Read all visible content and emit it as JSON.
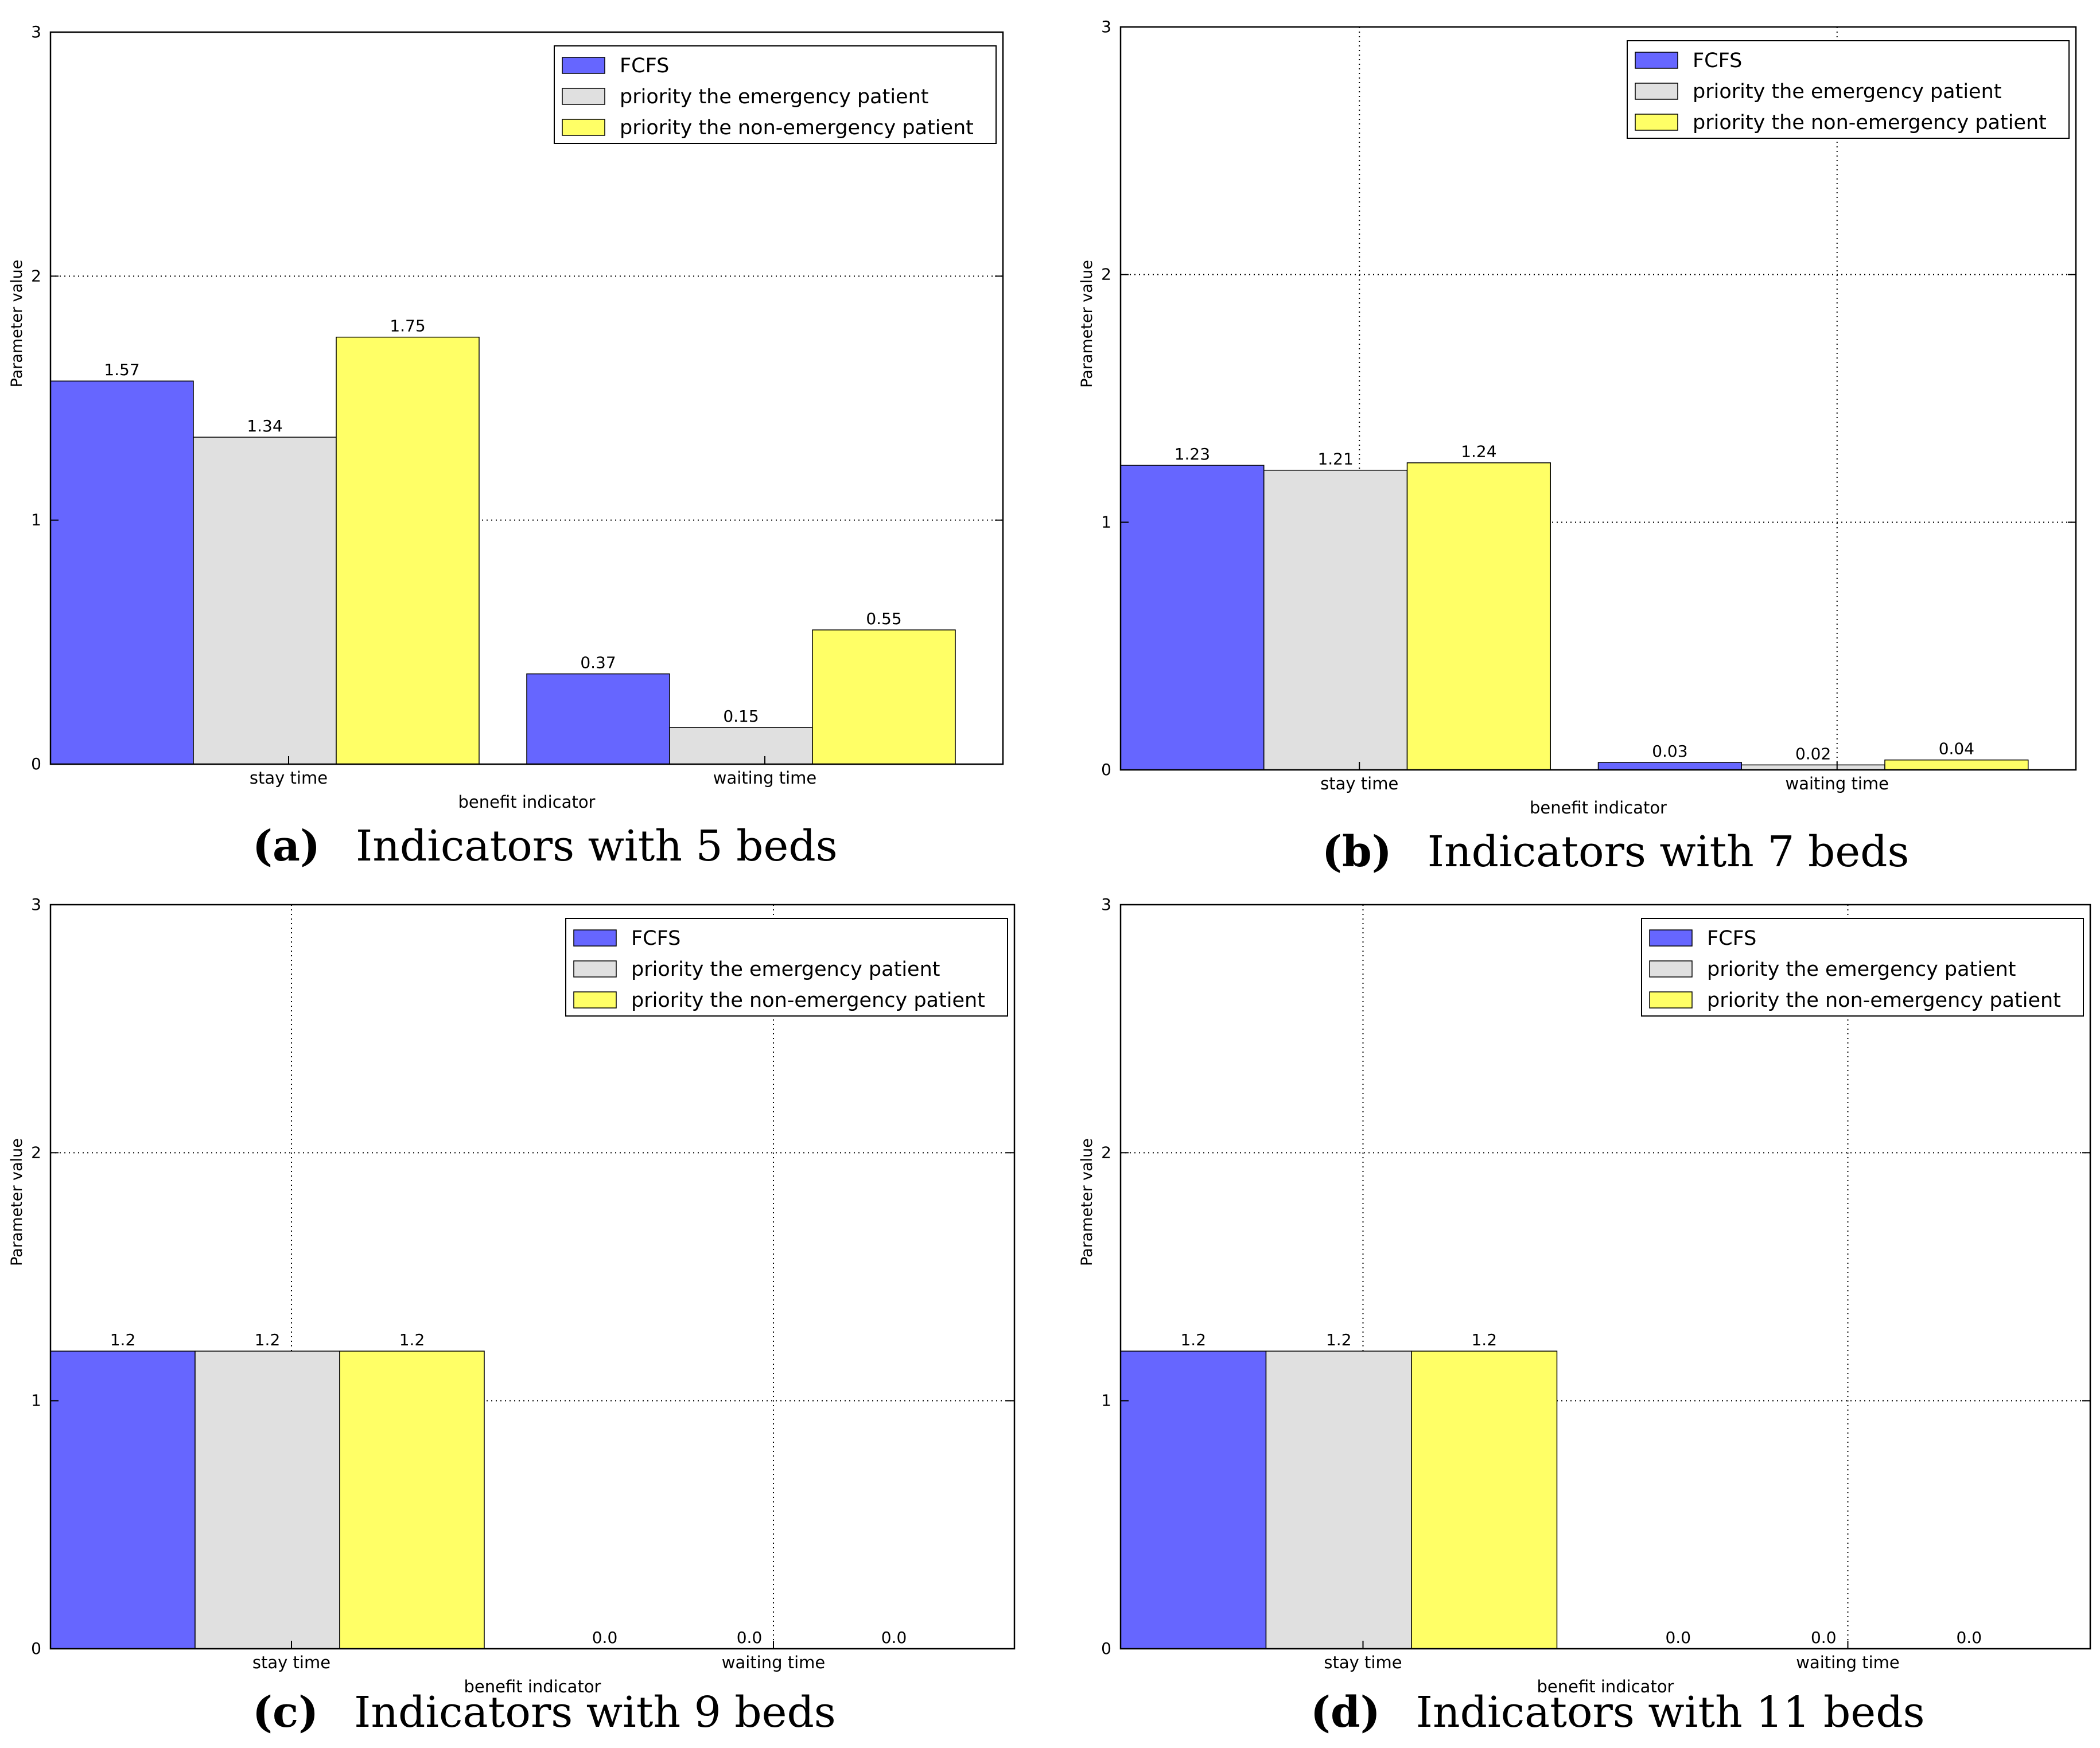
{
  "figure": {
    "legend_labels": [
      "FCFS",
      "priority the emergency patient",
      "priority the non-emergency patient"
    ],
    "colors": {
      "FCFS": "#6666ff",
      "emergency": "#e0e0e0",
      "non_emergency": "#ffff66",
      "grid": "#000000"
    }
  },
  "chart_data": [
    {
      "id": "a",
      "type": "bar",
      "caption_tag": "(a)",
      "caption_text": "Indicators with 5 beds",
      "categories": [
        "stay time",
        "waiting time"
      ],
      "series": [
        {
          "name": "FCFS",
          "values": [
            1.57,
            0.37
          ],
          "labels": [
            "1.57",
            "0.37"
          ]
        },
        {
          "name": "priority the emergency patient",
          "values": [
            1.34,
            0.15
          ],
          "labels": [
            "1.34",
            "0.15"
          ]
        },
        {
          "name": "priority the non-emergency patient",
          "values": [
            1.75,
            0.55
          ],
          "labels": [
            "1.75",
            "0.55"
          ]
        }
      ],
      "xlabel": "benefit indicator",
      "ylabel": "Parameter value",
      "ylim": [
        0,
        3
      ],
      "yticks": [
        "0",
        "1",
        "2",
        "3"
      ],
      "vertical_grid": false,
      "legend": "top-right"
    },
    {
      "id": "b",
      "type": "bar",
      "caption_tag": "(b)",
      "caption_text": "Indicators with 7 beds",
      "categories": [
        "stay time",
        "waiting time"
      ],
      "series": [
        {
          "name": "FCFS",
          "values": [
            1.23,
            0.03
          ],
          "labels": [
            "1.23",
            "0.03"
          ]
        },
        {
          "name": "priority the emergency patient",
          "values": [
            1.21,
            0.02
          ],
          "labels": [
            "1.21",
            "0.02"
          ]
        },
        {
          "name": "priority the non-emergency patient",
          "values": [
            1.24,
            0.04
          ],
          "labels": [
            "1.24",
            "0.04"
          ]
        }
      ],
      "xlabel": "benefit indicator",
      "ylabel": "Parameter value",
      "ylim": [
        0,
        3
      ],
      "yticks": [
        "0",
        "1",
        "2",
        "3"
      ],
      "vertical_grid": true,
      "legend": "top-right"
    },
    {
      "id": "c",
      "type": "bar",
      "caption_tag": "(c)",
      "caption_text": "Indicators with 9 beds",
      "categories": [
        "stay time",
        "waiting time"
      ],
      "series": [
        {
          "name": "FCFS",
          "values": [
            1.2,
            0.0
          ],
          "labels": [
            "1.2",
            "0.0"
          ]
        },
        {
          "name": "priority the emergency patient",
          "values": [
            1.2,
            0.0
          ],
          "labels": [
            "1.2",
            "0.0"
          ]
        },
        {
          "name": "priority the non-emergency patient",
          "values": [
            1.2,
            0.0
          ],
          "labels": [
            "1.2",
            "0.0"
          ]
        }
      ],
      "xlabel": "benefit indicator",
      "ylabel": "Parameter value",
      "ylim": [
        0,
        3
      ],
      "yticks": [
        "0",
        "1",
        "2",
        "3"
      ],
      "vertical_grid": true,
      "legend": "top-right"
    },
    {
      "id": "d",
      "type": "bar",
      "caption_tag": "(d)",
      "caption_text": "Indicators with 11 beds",
      "categories": [
        "stay time",
        "waiting time"
      ],
      "series": [
        {
          "name": "FCFS",
          "values": [
            1.2,
            0.0
          ],
          "labels": [
            "1.2",
            "0.0"
          ]
        },
        {
          "name": "priority the emergency patient",
          "values": [
            1.2,
            0.0
          ],
          "labels": [
            "1.2",
            "0.0"
          ]
        },
        {
          "name": "priority the non-emergency patient",
          "values": [
            1.2,
            0.0
          ],
          "labels": [
            "1.2",
            "0.0"
          ]
        }
      ],
      "xlabel": "benefit indicator",
      "ylabel": "Parameter value",
      "ylim": [
        0,
        3
      ],
      "yticks": [
        "0",
        "1",
        "2",
        "3"
      ],
      "vertical_grid": true,
      "legend": "top-right"
    }
  ]
}
